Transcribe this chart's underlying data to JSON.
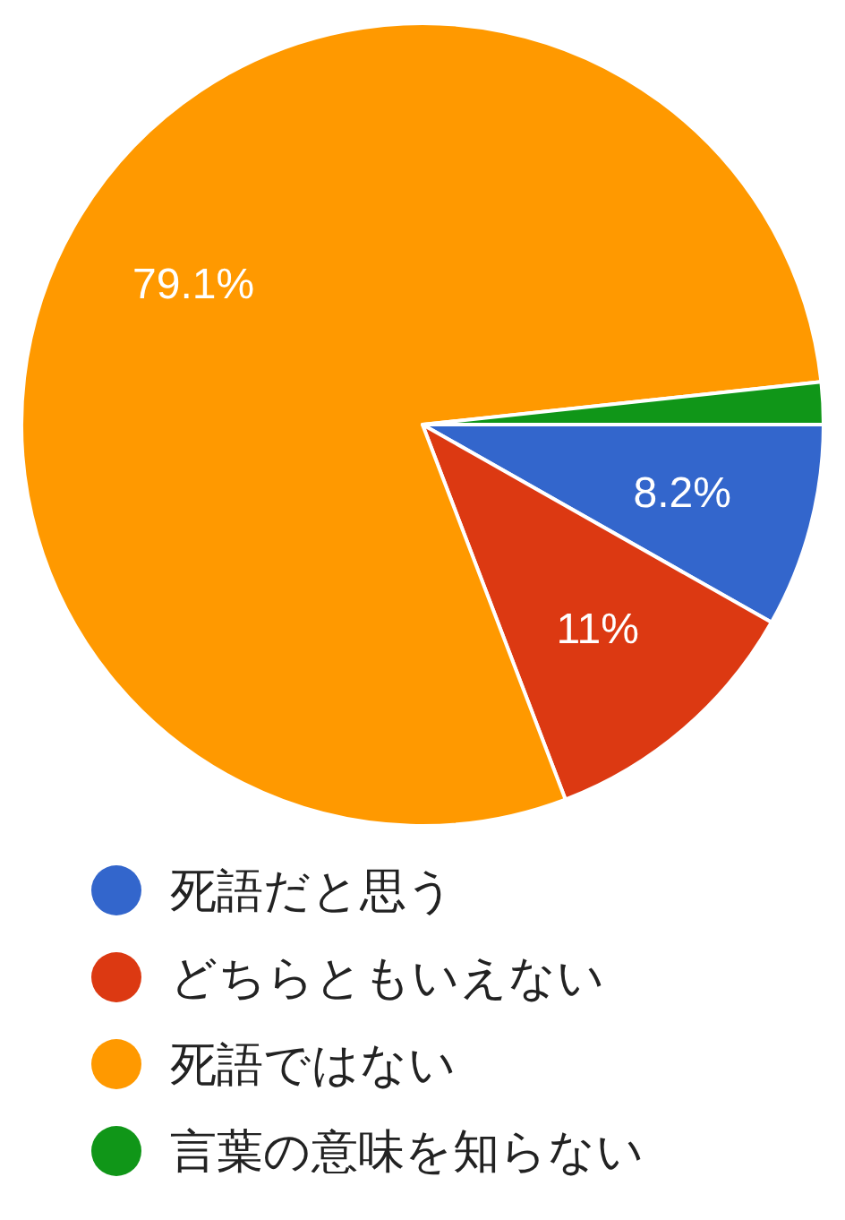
{
  "chart_data": {
    "type": "pie",
    "categories": [
      "死語だと思う",
      "どちらともいえない",
      "死語ではない",
      "言葉の意味を知らない"
    ],
    "values": [
      8.2,
      11,
      79.1,
      1.7
    ],
    "colors": [
      "#3366cc",
      "#dc3912",
      "#ff9900",
      "#109618"
    ],
    "value_labels": [
      "8.2%",
      "11%",
      "79.1%",
      null
    ],
    "legend": "bottom"
  }
}
